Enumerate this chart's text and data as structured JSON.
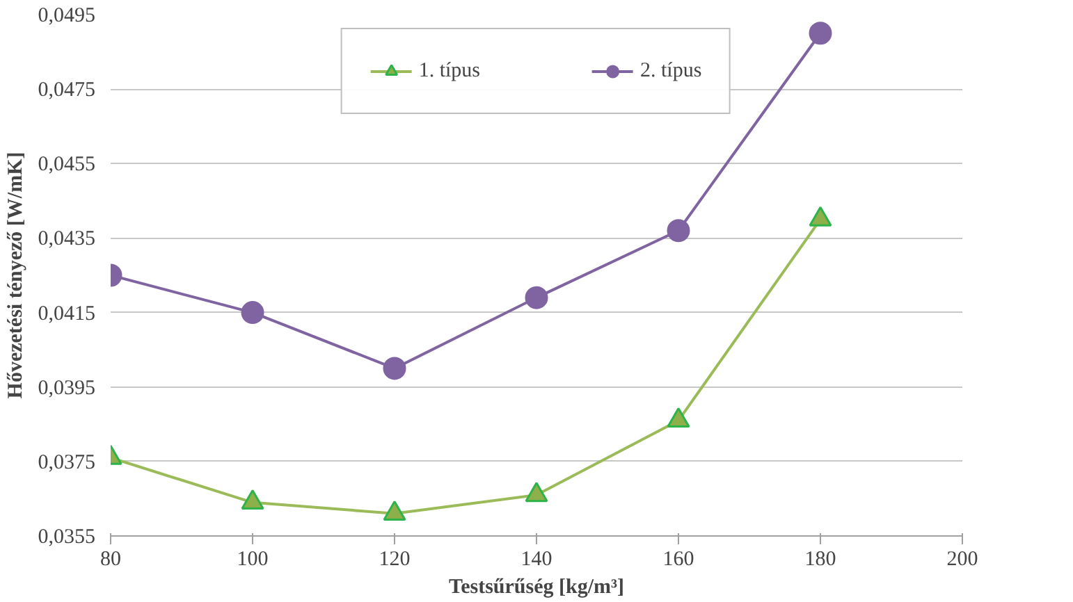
{
  "chart_data": {
    "type": "line",
    "xlabel": "Testsűrűség [kg/m³]",
    "ylabel": "Hővezetési tényező [W/mK]",
    "x": [
      80,
      100,
      120,
      140,
      160,
      180
    ],
    "series": [
      {
        "name": "1. típus",
        "color": "#9bbb59",
        "marker": "triangle",
        "values": [
          0.0376,
          0.0364,
          0.0361,
          0.0366,
          0.0386,
          0.044
        ]
      },
      {
        "name": "2. típus",
        "color": "#8064a2",
        "marker": "circle",
        "values": [
          0.0425,
          0.0415,
          0.04,
          0.0419,
          0.0437,
          0.049
        ]
      }
    ],
    "xlim": [
      80,
      200
    ],
    "xticks": [
      80,
      100,
      120,
      140,
      160,
      180,
      200
    ],
    "ylim": [
      0.0355,
      0.0495
    ],
    "yticks": [
      {
        "value": 0.0355,
        "label": "0,0355"
      },
      {
        "value": 0.0375,
        "label": "0,0375"
      },
      {
        "value": 0.0395,
        "label": "0,0395"
      },
      {
        "value": 0.0415,
        "label": "0,0415"
      },
      {
        "value": 0.0435,
        "label": "0,0435"
      },
      {
        "value": 0.0455,
        "label": "0,0455"
      },
      {
        "value": 0.0475,
        "label": "0,0475"
      },
      {
        "value": 0.0495,
        "label": "0,0495"
      }
    ],
    "grid": "y",
    "legend": "top",
    "line_style": "solid"
  }
}
